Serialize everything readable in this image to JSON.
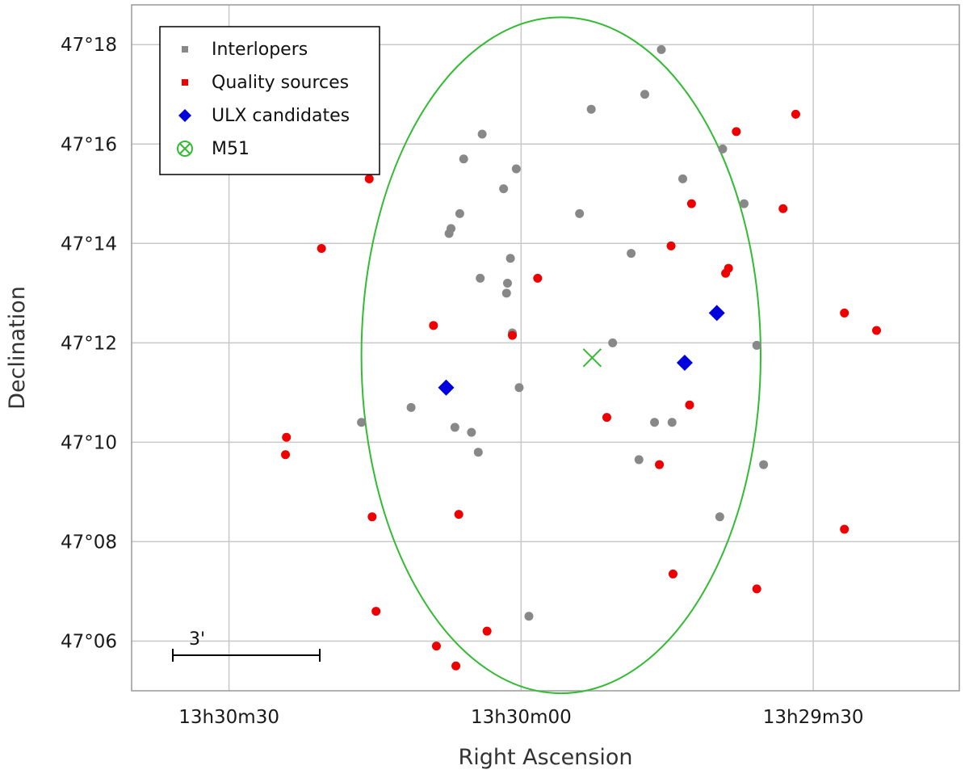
{
  "chart_data": {
    "type": "scatter",
    "xlabel": "Right Ascension",
    "ylabel": "Declination",
    "x_unit": "seconds of RA offset from 13h30m00",
    "y_unit": "arcminutes of Dec offset from 47°12",
    "xlim": [
      40,
      -45
    ],
    "ylim": [
      -7.0,
      6.8
    ],
    "x_ticks": [
      {
        "value": 30,
        "label": "13h30m30"
      },
      {
        "value": 0,
        "label": "13h30m00"
      },
      {
        "value": -30,
        "label": "13h29m30"
      }
    ],
    "y_ticks": [
      {
        "value": -6,
        "label": "47°06"
      },
      {
        "value": -4,
        "label": "47°08"
      },
      {
        "value": -2,
        "label": "47°10"
      },
      {
        "value": 0,
        "label": "47°12"
      },
      {
        "value": 2,
        "label": "47°14"
      },
      {
        "value": 4,
        "label": "47°16"
      },
      {
        "value": 6,
        "label": "47°18"
      }
    ],
    "grid": true,
    "legend_position": "top-left",
    "scale_bar": {
      "label": "3'"
    },
    "ellipse": {
      "center": [
        -4.1,
        -0.25
      ],
      "semi_x": 20.5,
      "semi_y": 6.8,
      "color": "#33bb33"
    },
    "series": [
      {
        "name": "Interlopers",
        "marker": "circle",
        "color": "#888888",
        "points": [
          [
            -14.4,
            5.9
          ],
          [
            -12.7,
            5.0
          ],
          [
            -7.2,
            4.7
          ],
          [
            4.0,
            4.2
          ],
          [
            5.9,
            3.7
          ],
          [
            -20.7,
            3.9
          ],
          [
            0.5,
            3.5
          ],
          [
            -16.6,
            3.3
          ],
          [
            1.8,
            3.1
          ],
          [
            -6.0,
            2.6
          ],
          [
            -22.9,
            2.8
          ],
          [
            6.3,
            2.6
          ],
          [
            7.2,
            2.3
          ],
          [
            7.4,
            2.2
          ],
          [
            1.1,
            1.7
          ],
          [
            -11.3,
            1.8
          ],
          [
            4.2,
            1.3
          ],
          [
            1.4,
            1.2
          ],
          [
            1.5,
            1.0
          ],
          [
            0.9,
            0.2
          ],
          [
            -9.4,
            0.0
          ],
          [
            -24.2,
            -0.05
          ],
          [
            0.2,
            -0.9
          ],
          [
            11.3,
            -1.3
          ],
          [
            16.4,
            -1.6
          ],
          [
            6.8,
            -1.7
          ],
          [
            5.1,
            -1.8
          ],
          [
            -13.7,
            -1.6
          ],
          [
            -15.5,
            -1.6
          ],
          [
            4.4,
            -2.2
          ],
          [
            -12.1,
            -2.35
          ],
          [
            -24.9,
            -2.45
          ],
          [
            -20.4,
            -3.5
          ],
          [
            -0.8,
            -5.5
          ]
        ]
      },
      {
        "name": "Quality sources",
        "marker": "circle",
        "color": "#ee0000",
        "points": [
          [
            -28.2,
            4.6
          ],
          [
            -22.1,
            4.25
          ],
          [
            15.6,
            3.3
          ],
          [
            -17.5,
            2.8
          ],
          [
            -26.9,
            2.7
          ],
          [
            20.5,
            1.9
          ],
          [
            -15.4,
            1.95
          ],
          [
            -21.3,
            1.5
          ],
          [
            -21.0,
            1.4
          ],
          [
            -1.7,
            1.3
          ],
          [
            9.0,
            0.35
          ],
          [
            0.9,
            0.15
          ],
          [
            -33.2,
            0.6
          ],
          [
            -36.5,
            0.25
          ],
          [
            -17.3,
            -1.25
          ],
          [
            -8.8,
            -1.5
          ],
          [
            24.1,
            -1.9
          ],
          [
            24.2,
            -2.25
          ],
          [
            -14.2,
            -2.45
          ],
          [
            15.3,
            -3.5
          ],
          [
            6.4,
            -3.45
          ],
          [
            -33.2,
            -3.75
          ],
          [
            -15.6,
            -4.65
          ],
          [
            -24.2,
            -4.95
          ],
          [
            14.9,
            -5.4
          ],
          [
            3.5,
            -5.8
          ],
          [
            8.7,
            -6.1
          ],
          [
            6.7,
            -6.5
          ]
        ]
      },
      {
        "name": "ULX candidates",
        "marker": "diamond",
        "color": "#0000dd",
        "points": [
          [
            -20.1,
            0.6
          ],
          [
            -16.8,
            -0.4
          ],
          [
            7.7,
            -0.9
          ]
        ]
      },
      {
        "name": "M51",
        "marker": "x",
        "color": "#33bb33",
        "points": [
          [
            -7.3,
            -0.3
          ]
        ]
      }
    ]
  }
}
